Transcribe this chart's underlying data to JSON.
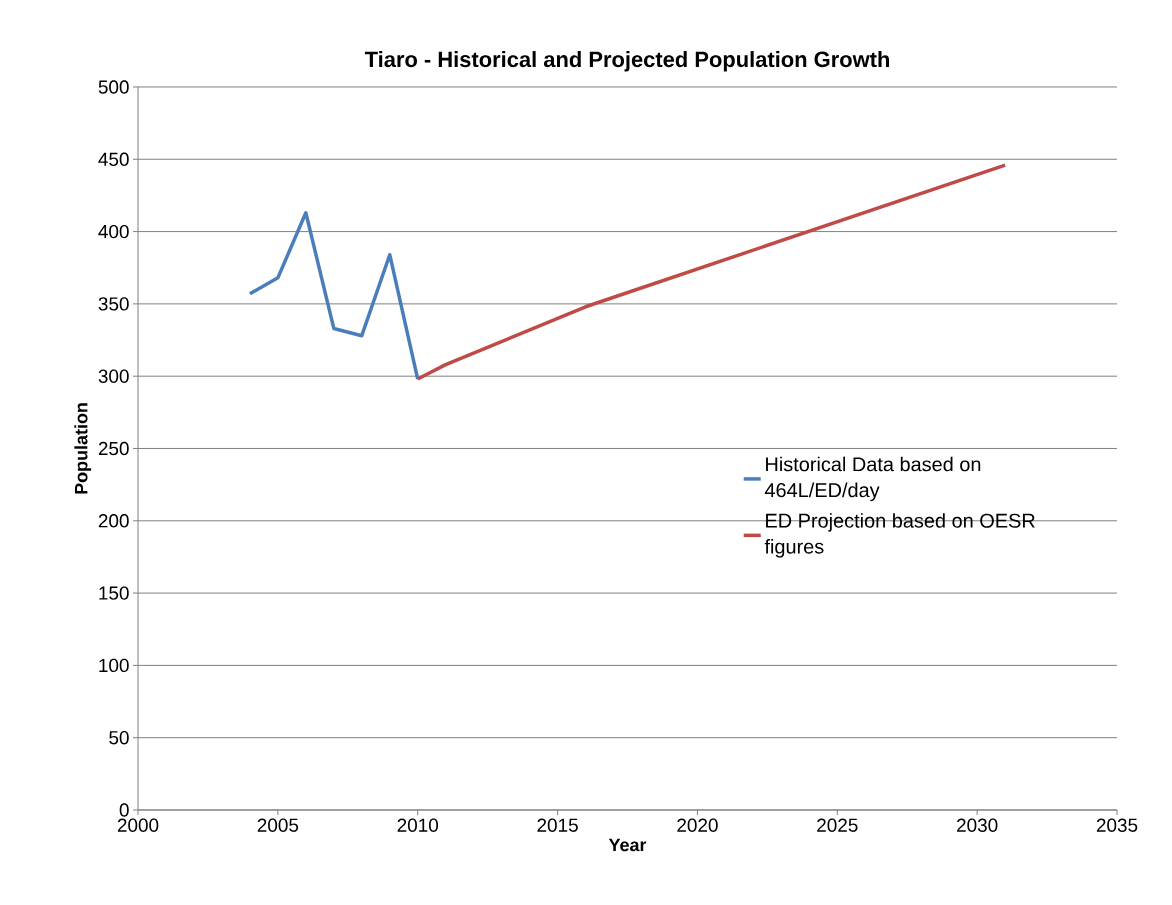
{
  "chart_data": {
    "type": "line",
    "title": "Tiaro - Historical and Projected Population Growth",
    "xlabel": "Year",
    "ylabel": "Population",
    "series": [
      {
        "name": "Historical Data based on 464L/ED/day",
        "color": "#4a7ebb",
        "x": [
          2004,
          2005,
          2006,
          2007,
          2008,
          2009,
          2010
        ],
        "values": [
          357,
          368,
          413,
          333,
          328,
          384,
          298
        ]
      },
      {
        "name": "ED Projection based on OESR figures",
        "color": "#be4b48",
        "x": [
          2010,
          2011,
          2016,
          2031
        ],
        "values": [
          298,
          308,
          348,
          446
        ]
      }
    ],
    "xlim": [
      2000,
      2035
    ],
    "ylim": [
      0,
      500
    ],
    "xticks": [
      2000,
      2005,
      2010,
      2015,
      2020,
      2025,
      2030,
      2035
    ],
    "yticks": [
      0,
      50,
      100,
      150,
      200,
      250,
      300,
      350,
      400,
      450,
      500
    ],
    "grid": "y",
    "legend": "right",
    "marker": "none",
    "line_style": "solid"
  }
}
